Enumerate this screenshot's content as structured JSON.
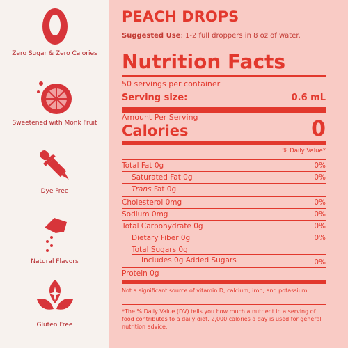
{
  "sidebar": {
    "features": [
      "Zero Sugar & Zero Calories",
      "Sweetened with Monk Fruit",
      "Dye Free",
      "Natural Flavors",
      "Gluten Free"
    ]
  },
  "label": {
    "product": "PEACH DROPS",
    "suggested_use_label": "Suggested Use",
    "suggested_use": ": 1-2 full droppers in 8 oz of water.",
    "title": "Nutrition Facts",
    "servings": "50 servings per container",
    "serving_size_label": "Serving size:",
    "serving_size": "0.6 mL",
    "amount": "Amount Per Serving",
    "calories_label": "Calories",
    "calories": 0,
    "dv_header": "% Daily Value*",
    "rows": [
      {
        "label": "Total Fat 0g",
        "dv": "0%"
      },
      {
        "label": "Saturated Fat 0g",
        "dv": "0%"
      },
      {
        "italic": "Trans",
        "label": " Fat 0g"
      },
      {
        "label": "Cholesterol 0mg",
        "dv": "0%"
      },
      {
        "label": "Sodium 0mg",
        "dv": "0%"
      },
      {
        "label": "Total Carbohydrate 0g",
        "dv": "0%"
      },
      {
        "label": "Dietary Fiber 0g",
        "dv": "0%"
      },
      {
        "label": "Total Sugars 0g"
      },
      {
        "label": "Includes 0g Added Sugars",
        "dv": "0%"
      },
      {
        "label": "Protein 0g"
      }
    ],
    "footnote_1": "Not a significant source of vitamin D, calcium, iron, and potassium",
    "footnote_2": "*The % Daily Value (DV) tells you how much a nutrient in a serving of food contributes to a daily diet. 2,000 calories a day is used for general nutrition advice."
  }
}
